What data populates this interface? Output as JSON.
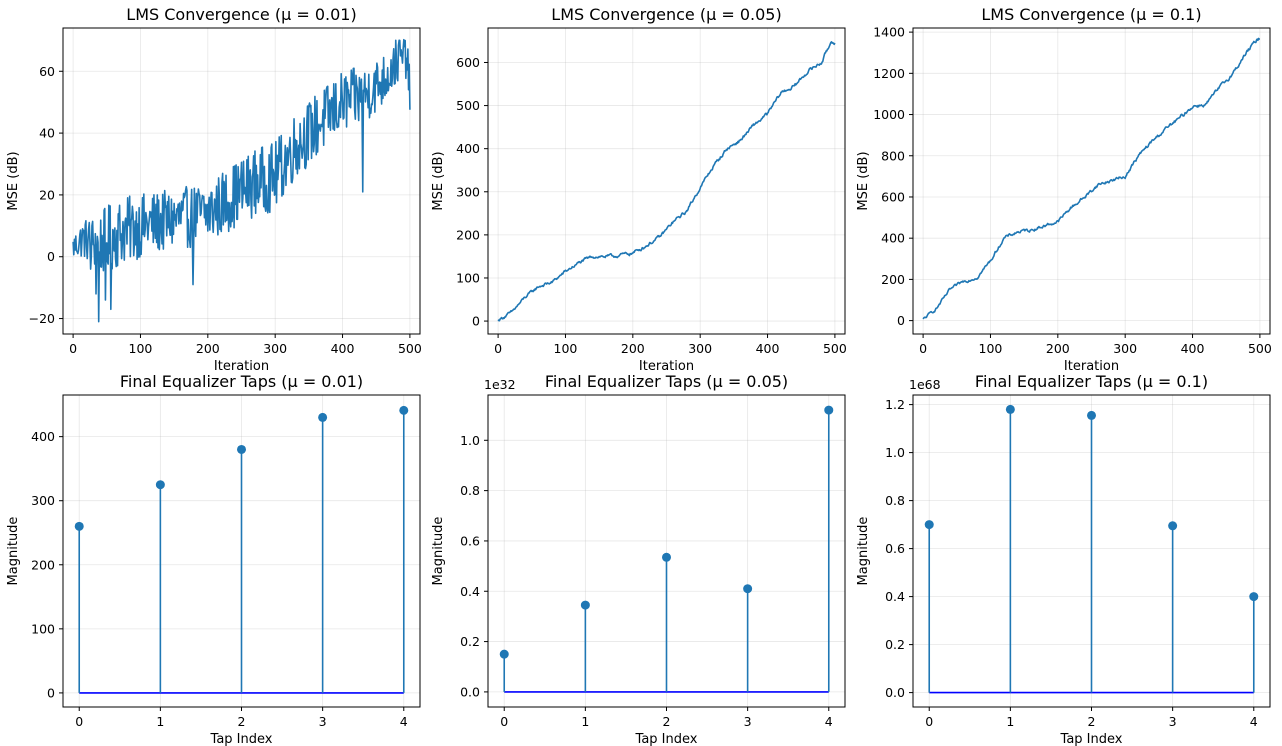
{
  "figure": {
    "colors": {
      "line": "#1f77b4",
      "stem": "#1f77b4",
      "baseline": "#0000ff",
      "grid": "#b0b0b0"
    }
  },
  "chart_data": [
    {
      "type": "line",
      "title": "LMS Convergence (μ = 0.01)",
      "xlabel": "Iteration",
      "ylabel": "MSE (dB)",
      "xlim": [
        -15,
        515
      ],
      "ylim": [
        -25,
        74
      ],
      "xticks": [
        0,
        100,
        200,
        300,
        400,
        500
      ],
      "yticks": [
        -20,
        0,
        20,
        40,
        60
      ],
      "grid": true,
      "x_range": [
        0,
        500
      ],
      "series": [
        {
          "anchors": [
            [
              0,
              3
            ],
            [
              15,
              6
            ],
            [
              40,
              4
            ],
            [
              70,
              8
            ],
            [
              100,
              10
            ],
            [
              150,
              12
            ],
            [
              200,
              14
            ],
            [
              240,
              20
            ],
            [
              270,
              24
            ],
            [
              300,
              26
            ],
            [
              330,
              36
            ],
            [
              360,
              42
            ],
            [
              400,
              50
            ],
            [
              430,
              52
            ],
            [
              460,
              57
            ],
            [
              480,
              63
            ],
            [
              495,
              65
            ],
            [
              500,
              53
            ]
          ],
          "noise": [
            [
              0,
              3
            ],
            [
              50,
              8
            ],
            [
              150,
              7
            ],
            [
              300,
              8
            ],
            [
              420,
              7
            ],
            [
              500,
              5
            ]
          ],
          "dips": [
            [
              26,
              -4
            ],
            [
              34,
              -12
            ],
            [
              38,
              -21
            ],
            [
              48,
              -14
            ],
            [
              56,
              -17
            ],
            [
              178,
              -9
            ],
            [
              430,
              21
            ]
          ],
          "peaks": [
            [
              485,
              70
            ],
            [
              492,
              68
            ]
          ]
        }
      ]
    },
    {
      "type": "line",
      "title": "LMS Convergence (μ = 0.05)",
      "xlabel": "Iteration",
      "ylabel": "MSE (dB)",
      "xlim": [
        -15,
        515
      ],
      "ylim": [
        -30,
        680
      ],
      "xticks": [
        0,
        100,
        200,
        300,
        400,
        500
      ],
      "yticks": [
        0,
        100,
        200,
        300,
        400,
        500,
        600
      ],
      "grid": true,
      "x_range": [
        0,
        500
      ],
      "series": [
        {
          "anchors": [
            [
              0,
              2
            ],
            [
              20,
              20
            ],
            [
              40,
              55
            ],
            [
              60,
              80
            ],
            [
              80,
              90
            ],
            [
              100,
              115
            ],
            [
              120,
              135
            ],
            [
              140,
              150
            ],
            [
              170,
              150
            ],
            [
              200,
              158
            ],
            [
              220,
              175
            ],
            [
              240,
              195
            ],
            [
              260,
              230
            ],
            [
              280,
              255
            ],
            [
              300,
              310
            ],
            [
              320,
              360
            ],
            [
              340,
              400
            ],
            [
              360,
              420
            ],
            [
              380,
              455
            ],
            [
              400,
              480
            ],
            [
              420,
              530
            ],
            [
              440,
              545
            ],
            [
              460,
              580
            ],
            [
              480,
              600
            ],
            [
              495,
              650
            ],
            [
              500,
              648
            ]
          ],
          "noise": [
            [
              0,
              4
            ],
            [
              500,
              5
            ]
          ],
          "dips": [],
          "peaks": []
        }
      ]
    },
    {
      "type": "line",
      "title": "LMS Convergence (μ = 0.1)",
      "xlabel": "Iteration",
      "ylabel": "MSE (dB)",
      "xlim": [
        -15,
        515
      ],
      "ylim": [
        -65,
        1420
      ],
      "xticks": [
        0,
        100,
        200,
        300,
        400,
        500
      ],
      "yticks": [
        0,
        200,
        400,
        600,
        800,
        1000,
        1200,
        1400
      ],
      "grid": true,
      "x_range": [
        0,
        500
      ],
      "series": [
        {
          "anchors": [
            [
              0,
              5
            ],
            [
              20,
              60
            ],
            [
              40,
              150
            ],
            [
              60,
              190
            ],
            [
              80,
              210
            ],
            [
              100,
              290
            ],
            [
              120,
              400
            ],
            [
              140,
              430
            ],
            [
              160,
              440
            ],
            [
              180,
              460
            ],
            [
              200,
              480
            ],
            [
              220,
              550
            ],
            [
              240,
              600
            ],
            [
              260,
              660
            ],
            [
              280,
              680
            ],
            [
              300,
              700
            ],
            [
              320,
              800
            ],
            [
              340,
              870
            ],
            [
              360,
              930
            ],
            [
              380,
              980
            ],
            [
              400,
              1040
            ],
            [
              420,
              1050
            ],
            [
              440,
              1130
            ],
            [
              460,
              1200
            ],
            [
              480,
              1300
            ],
            [
              495,
              1360
            ],
            [
              500,
              1370
            ]
          ],
          "noise": [
            [
              0,
              8
            ],
            [
              500,
              10
            ]
          ],
          "dips": [],
          "peaks": []
        }
      ]
    },
    {
      "type": "stem",
      "title": "Final Equalizer Taps (μ = 0.01)",
      "xlabel": "Tap Index",
      "ylabel": "Magnitude",
      "exponent": "",
      "xlim": [
        -0.2,
        4.2
      ],
      "ylim": [
        -22,
        465
      ],
      "xticks": [
        0,
        1,
        2,
        3,
        4
      ],
      "yticks": [
        0,
        100,
        200,
        300,
        400
      ],
      "grid": true,
      "x": [
        0,
        1,
        2,
        3,
        4
      ],
      "values": [
        260,
        325,
        380,
        430,
        441
      ]
    },
    {
      "type": "stem",
      "title": "Final Equalizer Taps (μ = 0.05)",
      "xlabel": "Tap Index",
      "ylabel": "Magnitude",
      "exponent": "1e32",
      "xlim": [
        -0.2,
        4.2
      ],
      "ylim": [
        -0.06,
        1.18
      ],
      "xticks": [
        0,
        1,
        2,
        3,
        4
      ],
      "yticks": [
        0,
        0.2,
        0.4,
        0.6,
        0.8,
        1.0
      ],
      "ytick_labels": [
        "0.0",
        "0.2",
        "0.4",
        "0.6",
        "0.8",
        "1.0"
      ],
      "grid": true,
      "x": [
        0,
        1,
        2,
        3,
        4
      ],
      "values": [
        0.15,
        0.345,
        0.535,
        0.41,
        1.12
      ]
    },
    {
      "type": "stem",
      "title": "Final Equalizer Taps (μ = 0.1)",
      "xlabel": "Tap Index",
      "ylabel": "Magnitude",
      "exponent": "1e68",
      "xlim": [
        -0.2,
        4.2
      ],
      "ylim": [
        -0.06,
        1.24
      ],
      "xticks": [
        0,
        1,
        2,
        3,
        4
      ],
      "yticks": [
        0,
        0.2,
        0.4,
        0.6,
        0.8,
        1.0,
        1.2
      ],
      "ytick_labels": [
        "0.0",
        "0.2",
        "0.4",
        "0.6",
        "0.8",
        "1.0",
        "1.2"
      ],
      "grid": true,
      "x": [
        0,
        1,
        2,
        3,
        4
      ],
      "values": [
        0.7,
        1.18,
        1.155,
        0.695,
        0.4
      ]
    }
  ]
}
